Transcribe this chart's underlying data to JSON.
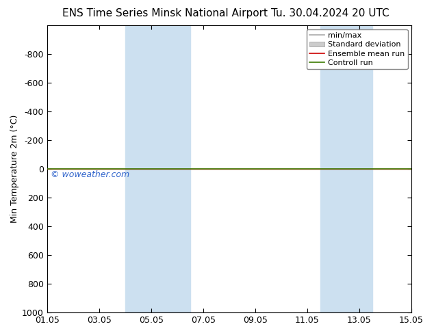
{
  "title_left": "ENS Time Series Minsk National Airport",
  "title_right": "Tu. 30.04.2024 20 UTC",
  "ylabel": "Min Temperature 2m (°C)",
  "ylim_bottom": -1000,
  "ylim_top": 1000,
  "yticks": [
    -800,
    -600,
    -400,
    -200,
    0,
    200,
    400,
    600,
    800,
    1000
  ],
  "xtick_labels": [
    "01.05",
    "03.05",
    "05.05",
    "07.05",
    "09.05",
    "11.05",
    "13.05",
    "15.05"
  ],
  "xtick_positions": [
    0,
    2,
    4,
    6,
    8,
    10,
    12,
    14
  ],
  "xlim_start": 0,
  "xlim_end": 14,
  "background_color": "#ffffff",
  "shaded_bands": [
    {
      "x_start": 3.0,
      "x_end": 5.5,
      "color": "#cce0f0"
    },
    {
      "x_start": 10.5,
      "x_end": 12.5,
      "color": "#cce0f0"
    }
  ],
  "green_line_color": "#3a7a00",
  "red_line_color": "#cc0000",
  "watermark_text": "© woweather.com",
  "watermark_color": "#3366cc",
  "legend_items": [
    {
      "label": "min/max",
      "color": "#aaaaaa",
      "lw": 1.2,
      "style": "-",
      "type": "line"
    },
    {
      "label": "Standard deviation",
      "color": "#cccccc",
      "lw": 6,
      "style": "-",
      "type": "patch"
    },
    {
      "label": "Ensemble mean run",
      "color": "#cc0000",
      "lw": 1.2,
      "style": "-",
      "type": "line"
    },
    {
      "label": "Controll run",
      "color": "#3a7a00",
      "lw": 1.2,
      "style": "-",
      "type": "line"
    }
  ],
  "figsize": [
    6.34,
    4.9
  ],
  "dpi": 100,
  "title_fontsize": 11,
  "axis_fontsize": 9,
  "legend_fontsize": 8,
  "watermark_fontsize": 9
}
